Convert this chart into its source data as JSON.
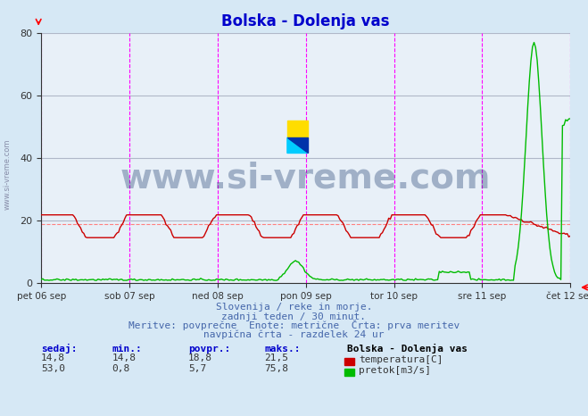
{
  "title": "Bolska - Dolenja vas",
  "title_color": "#0000cc",
  "bg_color": "#d6e8f5",
  "plot_bg_color": "#e8f0f8",
  "grid_color": "#b0b8c8",
  "x_labels": [
    "pet 06 sep",
    "sob 07 sep",
    "ned 08 sep",
    "pon 09 sep",
    "tor 10 sep",
    "sre 11 sep",
    "čet 12 sep"
  ],
  "x_ticks_norm": [
    0.0,
    0.1667,
    0.3333,
    0.5,
    0.6667,
    0.8333,
    1.0
  ],
  "y_min": 0,
  "y_max": 80,
  "y_ticks": [
    0,
    20,
    40,
    60,
    80
  ],
  "vline_color": "#ff00ff",
  "hline_color": "#ff8080",
  "hline_value": 18.8,
  "temp_color": "#cc0000",
  "flow_color": "#00bb00",
  "watermark_text": "www.si-vreme.com",
  "watermark_color": "#1a3a6e",
  "watermark_alpha": 0.35,
  "subtitle_lines": [
    "Slovenija / reke in morje.",
    "zadnji teden / 30 minut.",
    "Meritve: povprečne  Enote: metrične  Črta: prva meritev",
    "navpična črta - razdelek 24 ur"
  ],
  "subtitle_color": "#4466aa",
  "legend_title": "Bolska - Dolenja vas",
  "legend_items": [
    {
      "label": "temperatura[C]",
      "color": "#cc0000"
    },
    {
      "label": "pretok[m3/s]",
      "color": "#00bb00"
    }
  ],
  "stats_headers": [
    "sedaj:",
    "min.:",
    "povpr.:",
    "maks.:"
  ],
  "stats_temp": [
    "14,8",
    "14,8",
    "18,8",
    "21,5"
  ],
  "stats_flow": [
    "53,0",
    "0,8",
    "5,7",
    "75,8"
  ],
  "stats_color": "#0000cc",
  "n_points": 336,
  "temp_avg": 18.8,
  "temp_min": 14.8,
  "temp_max": 21.5,
  "flow_avg": 5.7,
  "flow_min": 0.8,
  "flow_max": 75.8
}
